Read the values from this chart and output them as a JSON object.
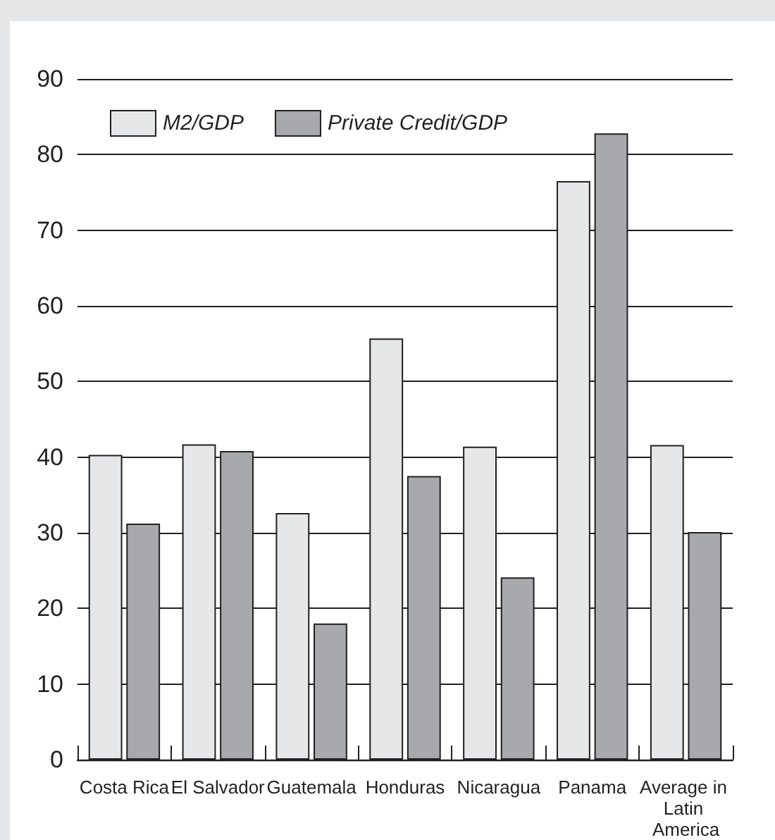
{
  "chart_data": {
    "type": "bar",
    "categories": [
      "Costa Rica",
      "El Salvador",
      "Guatemala",
      "Honduras",
      "Nicaragua",
      "Panama",
      "Average in Latin America"
    ],
    "series": [
      {
        "name": "M2/GDP",
        "color": "#e6e7e8",
        "values": [
          40.3,
          41.7,
          32.6,
          55.7,
          41.4,
          76.5,
          41.6
        ]
      },
      {
        "name": "Private Credit/GDP",
        "color": "#a7a9ac",
        "values": [
          31.2,
          40.8,
          18.0,
          37.5,
          24.1,
          82.8,
          30.1
        ]
      }
    ],
    "ylim": [
      0,
      90
    ],
    "yticks": [
      0,
      10,
      20,
      30,
      40,
      50,
      60,
      70,
      80,
      90
    ],
    "grid": "y",
    "legend": "top left"
  }
}
